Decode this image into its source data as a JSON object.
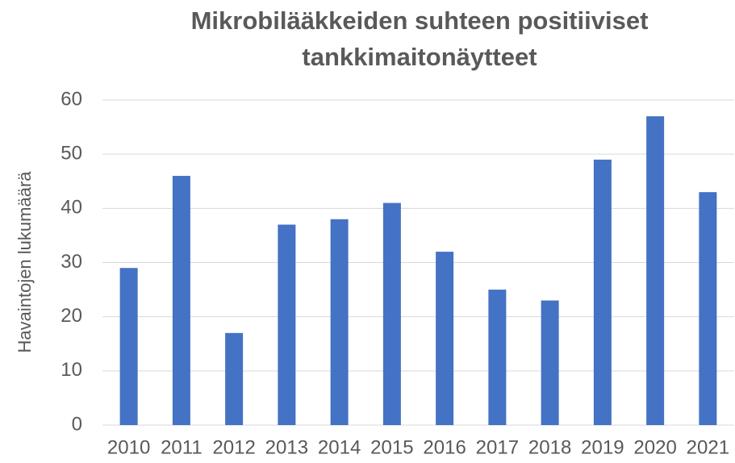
{
  "chart_data": {
    "type": "bar",
    "title": [
      "Mikrobilääkkeiden suhteen positiiviset",
      "tankkimaitonäytteet"
    ],
    "ylabel": "Havaintojen lukumäärä",
    "categories": [
      "2010",
      "2011",
      "2012",
      "2013",
      "2014",
      "2015",
      "2016",
      "2017",
      "2018",
      "2019",
      "2020",
      "2021"
    ],
    "values": [
      29,
      46,
      17,
      37,
      38,
      41,
      32,
      25,
      23,
      49,
      57,
      43
    ],
    "color": "#4472c4",
    "ylim": [
      0,
      60
    ],
    "yticks": [
      0,
      10,
      20,
      30,
      40,
      50,
      60
    ],
    "grid": true
  }
}
